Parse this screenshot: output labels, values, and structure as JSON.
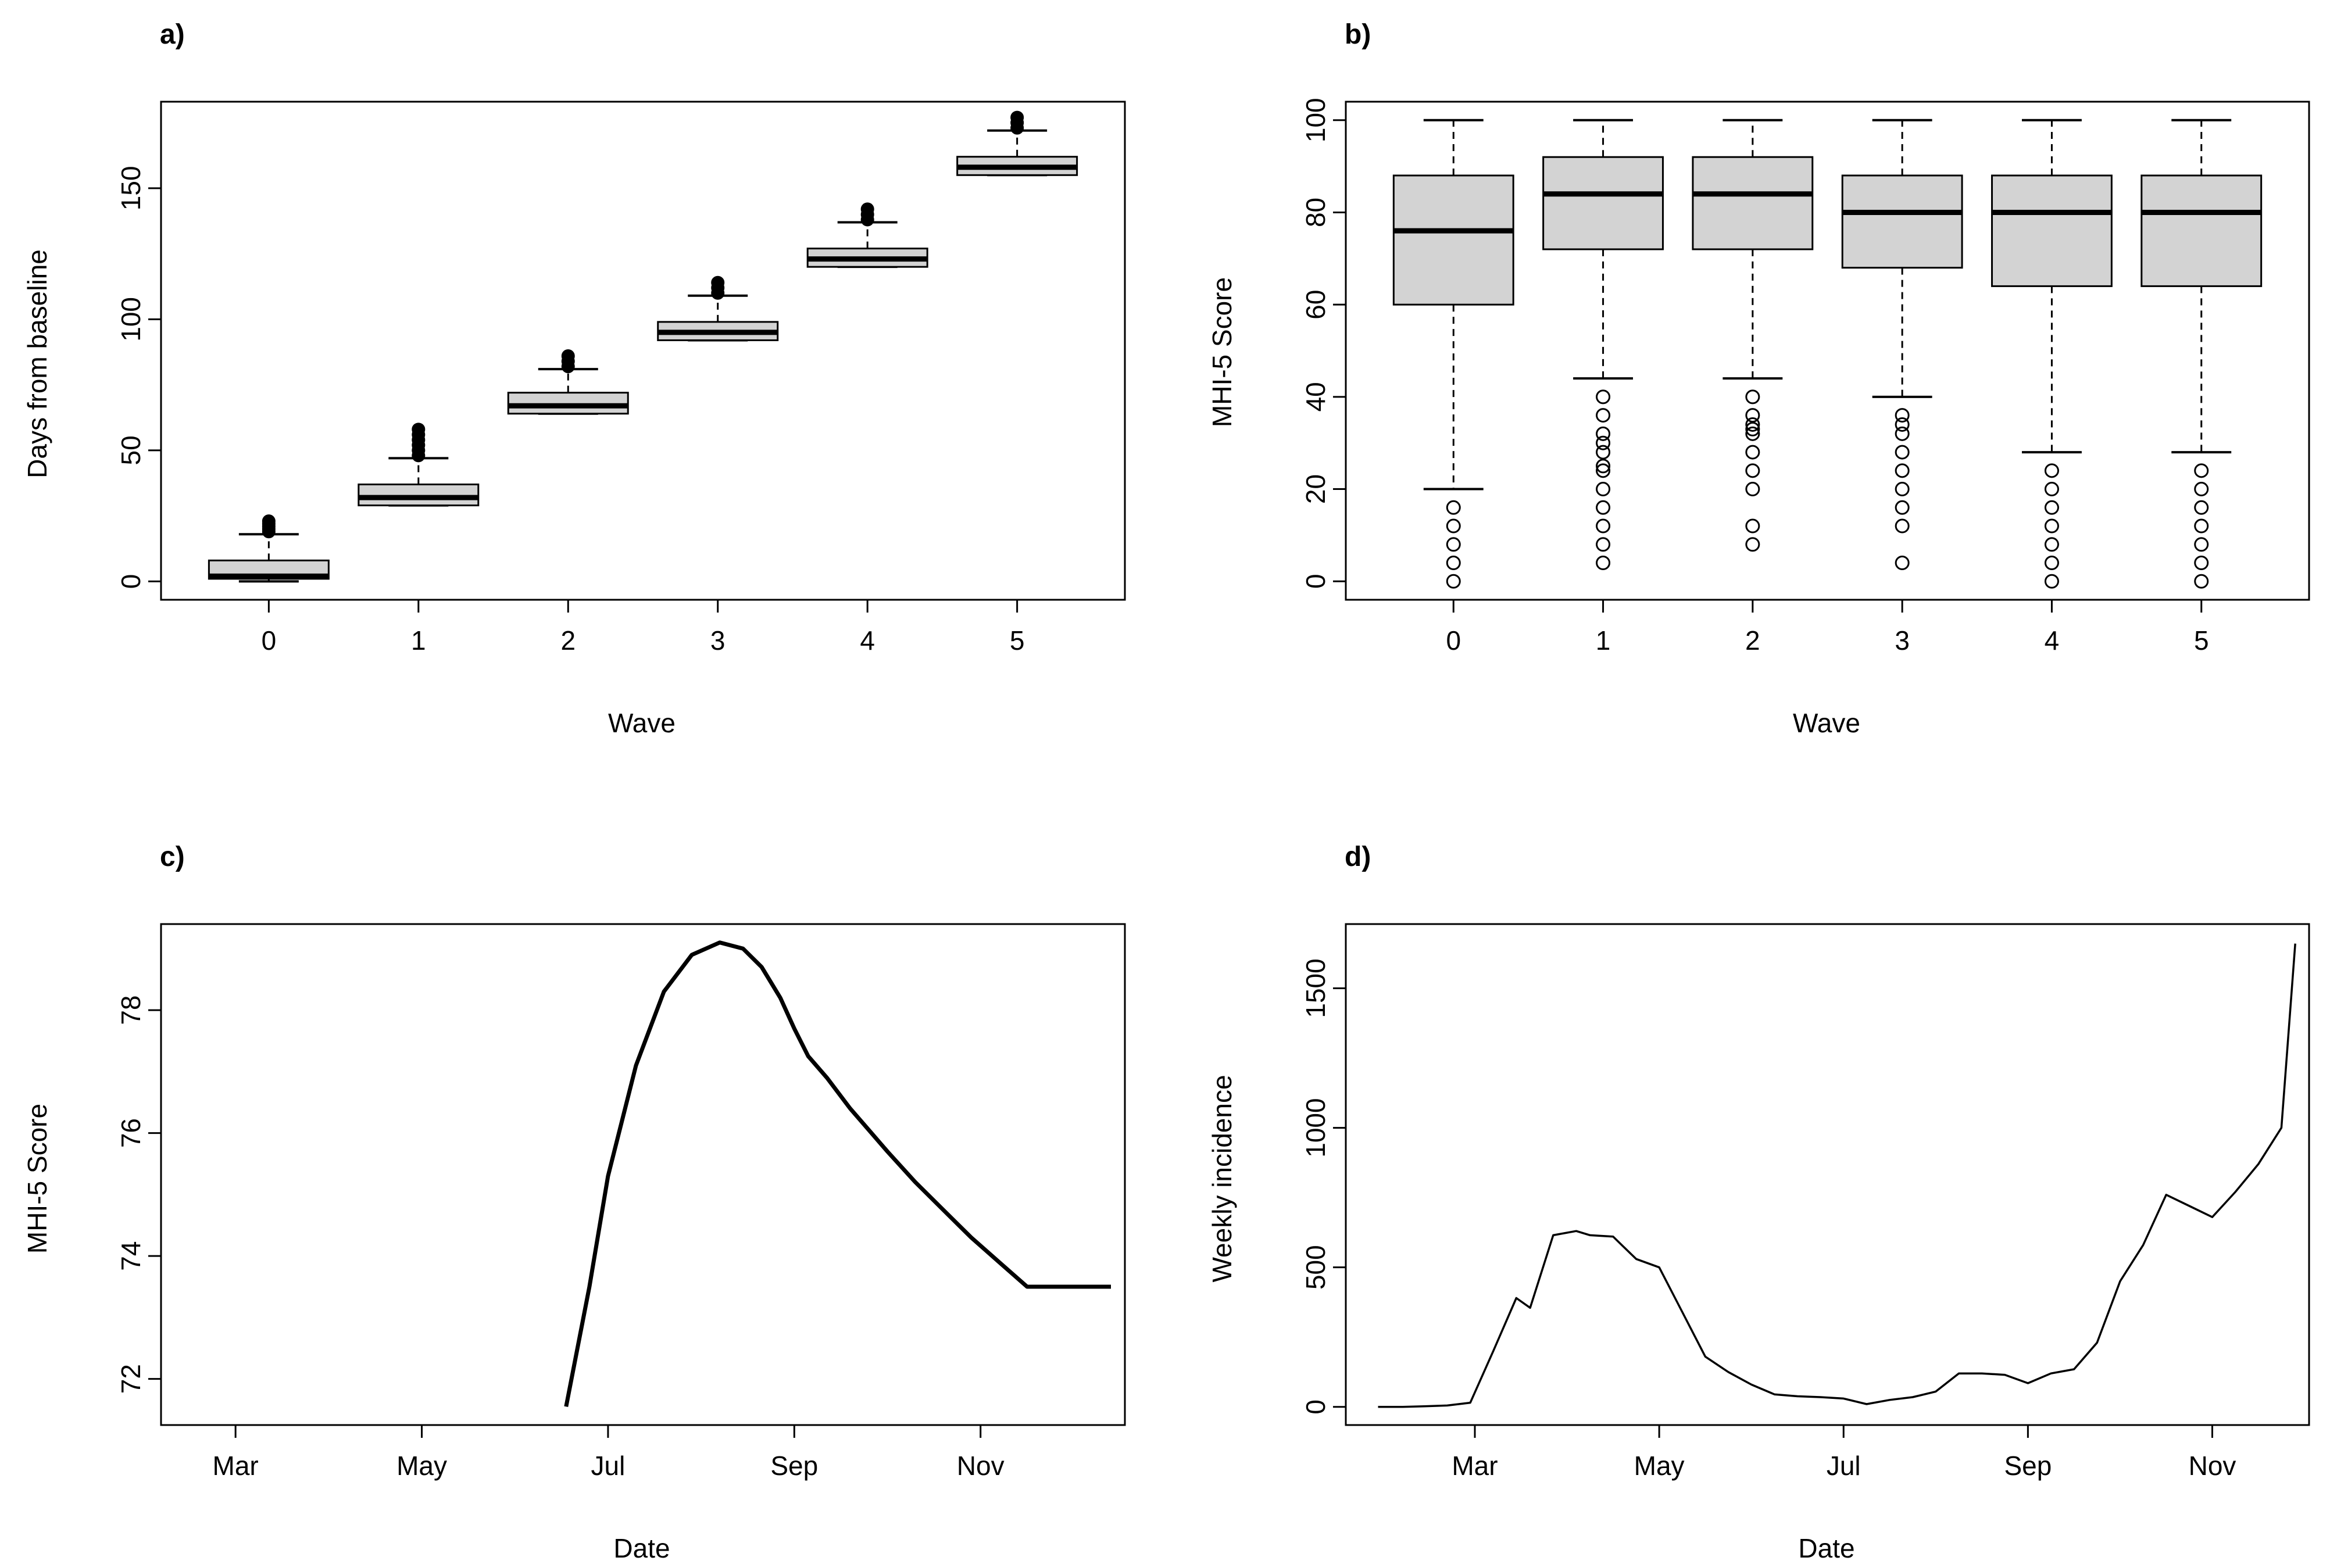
{
  "chart_data": [
    {
      "panel": "a)",
      "type": "box",
      "xlabel": "Wave",
      "ylabel": "Days from baseline",
      "categories": [
        "0",
        "1",
        "2",
        "3",
        "4",
        "5"
      ],
      "xticks": [
        "0",
        "1",
        "2",
        "3",
        "4",
        "5"
      ],
      "yticks": [
        "0",
        "50",
        "100",
        "150"
      ],
      "ylim": [
        -7,
        183
      ],
      "boxes": [
        {
          "low": 0,
          "q1": 1,
          "median": 2,
          "q3": 8,
          "high": 18,
          "outliers": [
            19,
            20,
            21,
            22,
            23
          ]
        },
        {
          "low": 29,
          "q1": 29,
          "median": 32,
          "q3": 37,
          "high": 47,
          "outliers": [
            48,
            50,
            52,
            54,
            56,
            58
          ]
        },
        {
          "low": 64,
          "q1": 64,
          "median": 67,
          "q3": 72,
          "high": 81,
          "outliers": [
            82,
            84,
            86
          ]
        },
        {
          "low": 92,
          "q1": 92,
          "median": 95,
          "q3": 99,
          "high": 109,
          "outliers": [
            110,
            112,
            114
          ]
        },
        {
          "low": 120,
          "q1": 120,
          "median": 123,
          "q3": 127,
          "high": 137,
          "outliers": [
            138,
            140,
            142
          ]
        },
        {
          "low": 155,
          "q1": 155,
          "median": 158,
          "q3": 162,
          "high": 172,
          "outliers": [
            173,
            175,
            177
          ]
        }
      ]
    },
    {
      "panel": "b)",
      "type": "box",
      "xlabel": "Wave",
      "ylabel": "MHI-5 Score",
      "categories": [
        "0",
        "1",
        "2",
        "3",
        "4",
        "5"
      ],
      "xticks": [
        "0",
        "1",
        "2",
        "3",
        "4",
        "5"
      ],
      "yticks": [
        "0",
        "20",
        "40",
        "60",
        "80",
        "100"
      ],
      "ylim": [
        -4,
        104
      ],
      "boxes": [
        {
          "low": 20,
          "q1": 60,
          "median": 76,
          "q3": 88,
          "high": 100,
          "outliers": [
            0,
            4,
            8,
            12,
            16
          ]
        },
        {
          "low": 44,
          "q1": 72,
          "median": 84,
          "q3": 92,
          "high": 100,
          "outliers": [
            4,
            8,
            12,
            16,
            20,
            24,
            25,
            28,
            30,
            32,
            36,
            40
          ]
        },
        {
          "low": 44,
          "q1": 72,
          "median": 84,
          "q3": 92,
          "high": 100,
          "outliers": [
            8,
            12,
            20,
            24,
            28,
            32,
            33,
            34,
            36,
            40
          ]
        },
        {
          "low": 40,
          "q1": 68,
          "median": 80,
          "q3": 88,
          "high": 100,
          "outliers": [
            4,
            12,
            16,
            20,
            24,
            28,
            32,
            34,
            36
          ]
        },
        {
          "low": 28,
          "q1": 64,
          "median": 80,
          "q3": 88,
          "high": 100,
          "outliers": [
            0,
            4,
            8,
            12,
            16,
            20,
            24
          ]
        },
        {
          "low": 28,
          "q1": 64,
          "median": 80,
          "q3": 88,
          "high": 100,
          "outliers": [
            0,
            4,
            8,
            12,
            16,
            20,
            24
          ]
        }
      ]
    },
    {
      "panel": "c)",
      "type": "line",
      "xlabel": "Date",
      "ylabel": "MHI-5 Score",
      "xticks": [
        "Mar",
        "May",
        "Jul",
        "Sep",
        "Nov"
      ],
      "xtick_months": [
        2,
        4,
        6,
        8,
        10
      ],
      "yticks": [
        "72",
        "74",
        "76",
        "78"
      ],
      "xlim": [
        1.2,
        11.55
      ],
      "ylim": [
        71.25,
        79.4
      ],
      "series": [
        {
          "name": "MHI-5 Score",
          "x": [
            5.55,
            5.8,
            6.0,
            6.3,
            6.6,
            6.9,
            7.2,
            7.45,
            7.65,
            7.85,
            8.0,
            8.15,
            8.35,
            8.6,
            8.8,
            9.0,
            9.3,
            9.6,
            9.9,
            10.2,
            10.5,
            10.8,
            11.1,
            11.4
          ],
          "y": [
            71.55,
            73.5,
            75.3,
            77.1,
            78.3,
            78.9,
            79.1,
            79.0,
            78.7,
            78.2,
            77.7,
            77.25,
            76.9,
            76.4,
            76.05,
            75.7,
            75.2,
            74.75,
            74.3,
            73.9,
            73.5,
            73.5,
            73.5,
            73.5
          ]
        }
      ]
    },
    {
      "panel": "d)",
      "type": "line",
      "xlabel": "Date",
      "ylabel": "Weekly incidence",
      "xticks": [
        "Mar",
        "May",
        "Jul",
        "Sep",
        "Nov"
      ],
      "xtick_months": [
        2,
        4,
        6,
        8,
        10
      ],
      "yticks": [
        "0",
        "500",
        "1000",
        "1500"
      ],
      "xlim": [
        0.6,
        11.05
      ],
      "ylim": [
        -65,
        1730
      ],
      "series": [
        {
          "name": "Weekly incidence",
          "x": [
            0.95,
            1.2,
            1.45,
            1.7,
            1.95,
            2.2,
            2.45,
            2.6,
            2.85,
            3.1,
            3.25,
            3.5,
            3.75,
            4.0,
            4.25,
            4.5,
            4.75,
            5.0,
            5.25,
            5.5,
            5.75,
            6.0,
            6.25,
            6.5,
            6.75,
            7.0,
            7.25,
            7.5,
            7.75,
            8.0,
            8.25,
            8.5,
            8.75,
            9.0,
            9.25,
            9.5,
            9.75,
            10.0,
            10.25,
            10.5,
            10.75,
            10.9
          ],
          "y": [
            0,
            0,
            2,
            5,
            15,
            200,
            390,
            355,
            615,
            630,
            615,
            610,
            530,
            500,
            340,
            180,
            125,
            80,
            45,
            38,
            35,
            30,
            10,
            25,
            35,
            55,
            120,
            120,
            115,
            85,
            120,
            135,
            230,
            450,
            580,
            760,
            720,
            680,
            770,
            870,
            1000,
            1660
          ]
        }
      ]
    }
  ]
}
